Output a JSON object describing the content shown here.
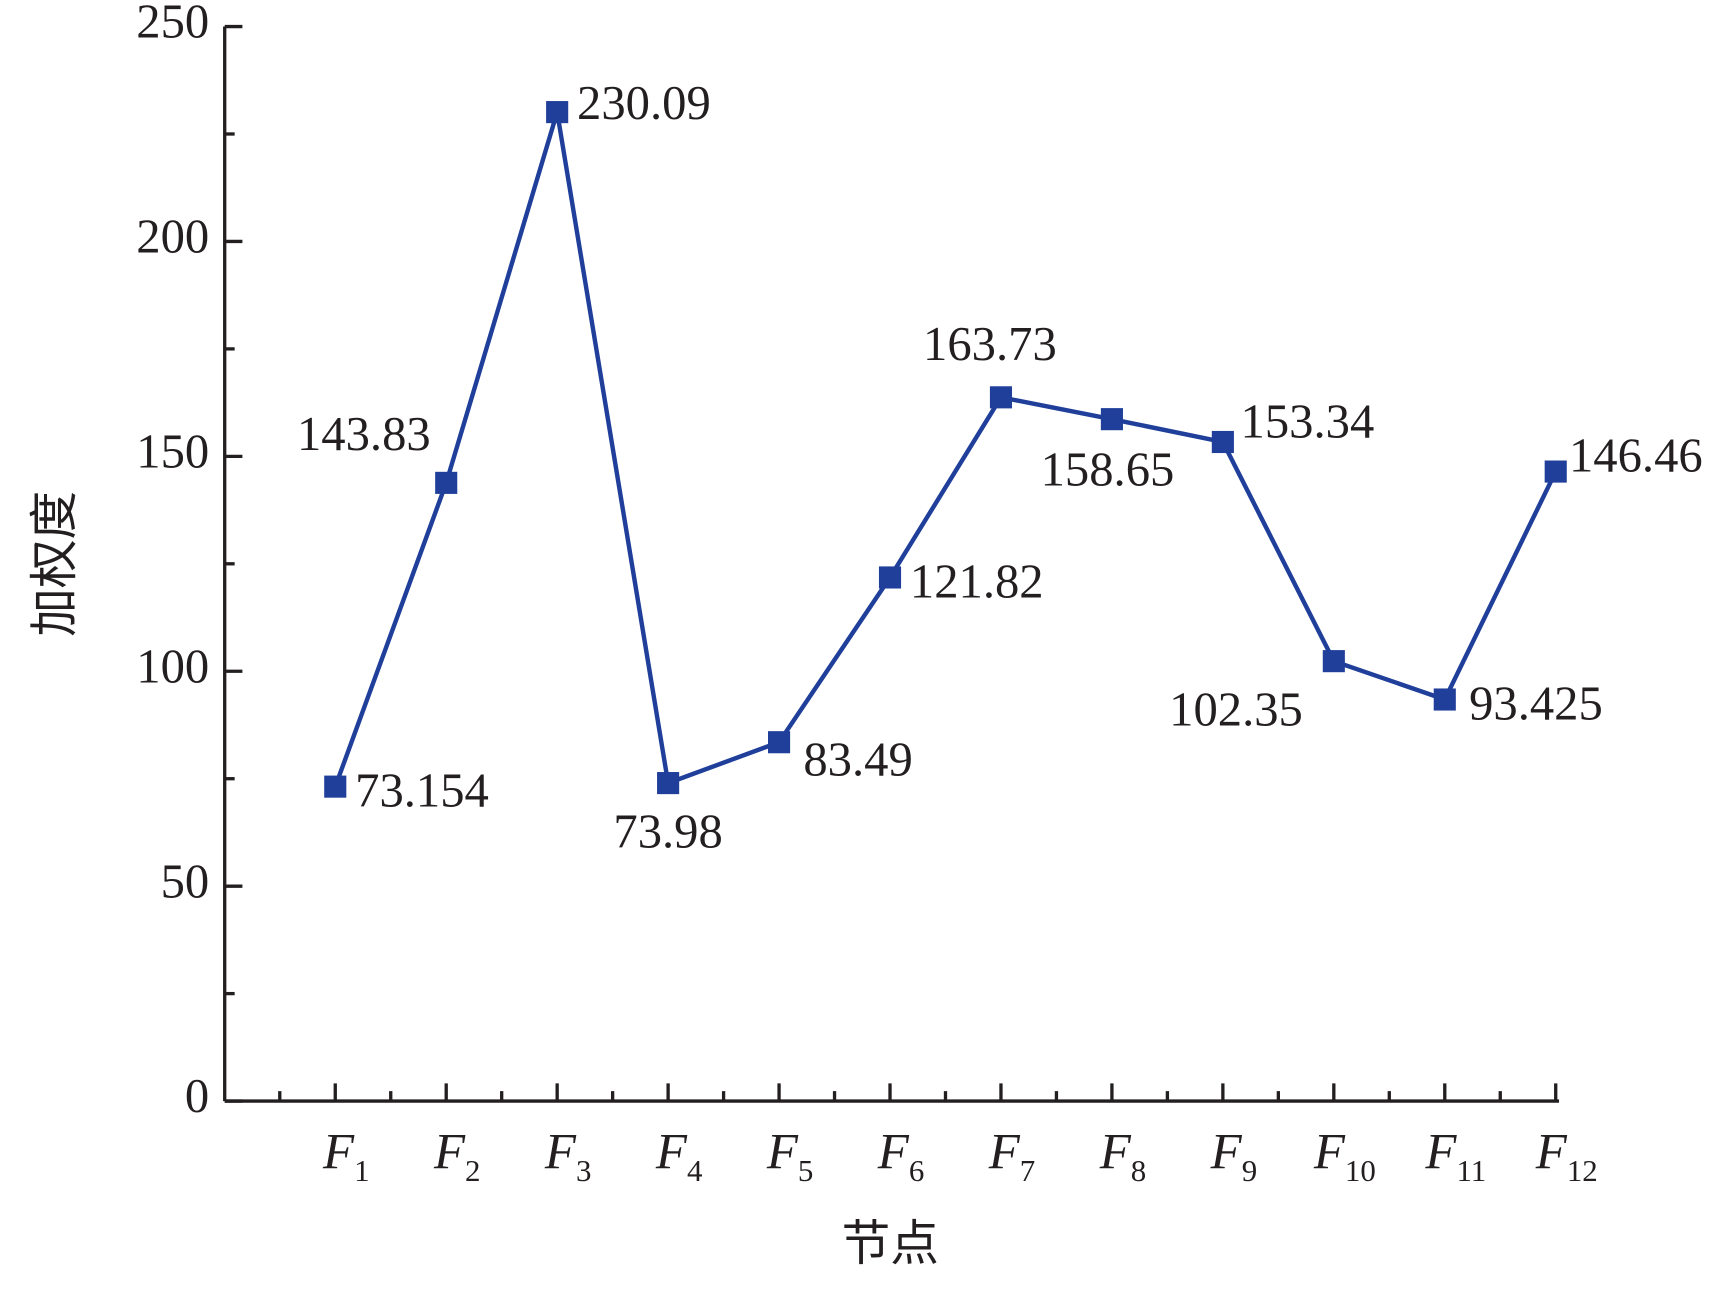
{
  "chart_data": {
    "type": "line",
    "x_label": "节点",
    "y_label": "加权度",
    "categories": [
      "F1",
      "F2",
      "F3",
      "F4",
      "F5",
      "F6",
      "F7",
      "F8",
      "F9",
      "F10",
      "F11",
      "F12"
    ],
    "values": [
      73.154,
      143.83,
      230.09,
      73.98,
      83.49,
      121.82,
      163.73,
      158.65,
      153.34,
      102.35,
      93.425,
      146.46
    ],
    "color": "#1f3f9a",
    "ylim": [
      0,
      250
    ],
    "yticks": [
      0,
      50,
      100,
      150,
      200,
      250
    ],
    "grid": false
  }
}
